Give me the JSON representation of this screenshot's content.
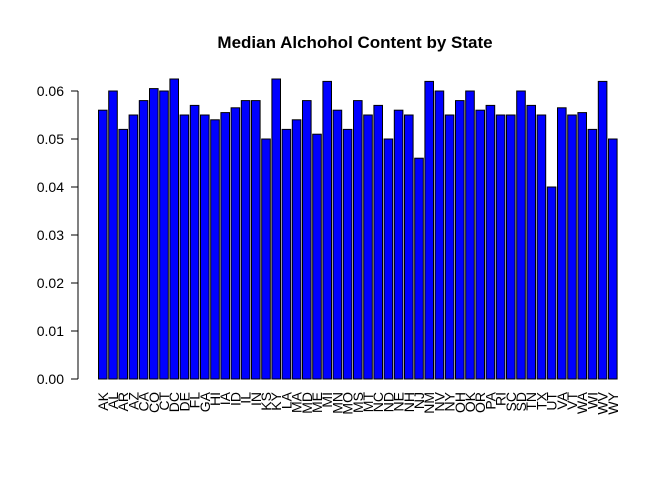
{
  "chart_data": {
    "type": "bar",
    "title": "Median Alchohol Content by State",
    "xlabel": "",
    "ylabel": "",
    "ylim": [
      0,
      0.065
    ],
    "yticks": [
      "0.00",
      "0.01",
      "0.02",
      "0.03",
      "0.04",
      "0.05",
      "0.06"
    ],
    "grid": false,
    "bar_color": "#0000FF",
    "categories": [
      "AK",
      "AL",
      "AR",
      "AZ",
      "CA",
      "CO",
      "CT",
      "DC",
      "DE",
      "FL",
      "GA",
      "HI",
      "IA",
      "ID",
      "IL",
      "IN",
      "KS",
      "KY",
      "LA",
      "MA",
      "MD",
      "ME",
      "MI",
      "MN",
      "MO",
      "MS",
      "MT",
      "NC",
      "ND",
      "NE",
      "NH",
      "NJ",
      "NM",
      "NV",
      "NY",
      "OH",
      "OK",
      "OR",
      "PA",
      "RI",
      "SC",
      "SD",
      "TN",
      "TX",
      "UT",
      "VA",
      "VT",
      "WA",
      "WI",
      "WV",
      "WY"
    ],
    "values": [
      0.056,
      0.06,
      0.052,
      0.055,
      0.058,
      0.0605,
      0.06,
      0.0625,
      0.055,
      0.057,
      0.055,
      0.054,
      0.0555,
      0.0565,
      0.058,
      0.058,
      0.05,
      0.0625,
      0.052,
      0.054,
      0.058,
      0.051,
      0.062,
      0.056,
      0.052,
      0.058,
      0.055,
      0.057,
      0.05,
      0.056,
      0.055,
      0.046,
      0.062,
      0.06,
      0.055,
      0.058,
      0.06,
      0.056,
      0.057,
      0.055,
      0.055,
      0.06,
      0.057,
      0.055,
      0.04,
      0.0565,
      0.055,
      0.0555,
      0.052,
      0.062,
      0.05
    ]
  }
}
